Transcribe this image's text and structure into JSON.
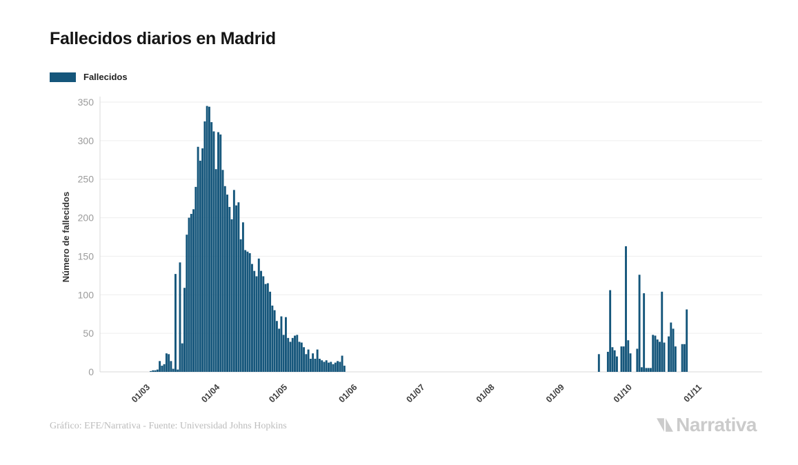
{
  "header": {
    "title": "Fallecidos diarios en Madrid"
  },
  "legend": {
    "label": "Fallecidos",
    "swatch_color": "#15567b"
  },
  "footer": {
    "credit": "Gráfico: EFE/Narrativa - Fuente: Universidad Johns Hopkins"
  },
  "branding": {
    "logo_text": "Narrativa",
    "logo_icon": "narrativa-n-icon",
    "logo_color": "#cbcbcb"
  },
  "chart_data": {
    "type": "bar",
    "title": "Fallecidos diarios en Madrid",
    "xlabel": "",
    "ylabel": "Número de fallecidos",
    "ylim": [
      0,
      350
    ],
    "y_ticks": [
      0,
      50,
      100,
      150,
      200,
      250,
      300,
      350
    ],
    "x_tick_labels": [
      "01/03",
      "01/04",
      "01/05",
      "01/06",
      "01/07",
      "01/08",
      "01/09",
      "01/10",
      "01/11"
    ],
    "x_tick_day_offsets": [
      0,
      31,
      61,
      92,
      122,
      153,
      184,
      214,
      245
    ],
    "grid": "horizontal",
    "legend_position": "top-left",
    "bar_color": "#15567b",
    "axis_color": "#d9d9d9",
    "grid_color": "#ededed",
    "y_tick_label_color": "#9b9b9b",
    "x_tick_label_color": "#3d3d3d",
    "series": [
      {
        "name": "Fallecidos",
        "start_date": "2020-03-01",
        "frequency": "daily",
        "values": [
          0,
          0,
          1,
          2,
          2,
          3,
          14,
          8,
          10,
          24,
          23,
          14,
          4,
          127,
          3,
          142,
          37,
          109,
          178,
          200,
          205,
          211,
          240,
          292,
          274,
          290,
          325,
          345,
          344,
          324,
          312,
          263,
          311,
          308,
          262,
          241,
          230,
          214,
          198,
          236,
          216,
          220,
          172,
          194,
          158,
          156,
          154,
          140,
          131,
          124,
          147,
          131,
          124,
          114,
          115,
          104,
          86,
          80,
          66,
          56,
          72,
          48,
          71,
          44,
          39,
          44,
          47,
          48,
          39,
          38,
          32,
          23,
          29,
          17,
          24,
          17,
          29,
          17,
          15,
          13,
          15,
          12,
          13,
          10,
          12,
          14,
          13,
          21,
          8,
          0,
          0,
          0,
          0,
          0,
          0,
          0,
          0,
          0,
          0,
          0,
          0,
          0,
          0,
          0,
          0,
          0,
          0,
          0,
          0,
          0,
          0,
          0,
          0,
          0,
          0,
          0,
          0,
          0,
          0,
          0,
          0,
          0,
          0,
          0,
          0,
          0,
          0,
          0,
          0,
          0,
          0,
          0,
          0,
          0,
          0,
          0,
          0,
          0,
          0,
          0,
          0,
          0,
          0,
          0,
          0,
          0,
          0,
          0,
          0,
          0,
          0,
          0,
          0,
          0,
          0,
          0,
          0,
          0,
          0,
          0,
          0,
          0,
          0,
          0,
          0,
          0,
          0,
          0,
          0,
          0,
          0,
          0,
          0,
          0,
          0,
          0,
          0,
          0,
          0,
          0,
          0,
          0,
          0,
          0,
          0,
          0,
          0,
          0,
          0,
          0,
          0,
          0,
          0,
          0,
          0,
          0,
          0,
          0,
          0,
          0,
          0,
          23,
          0,
          0,
          0,
          26,
          106,
          32,
          28,
          20,
          0,
          33,
          33,
          163,
          41,
          24,
          0,
          0,
          30,
          126,
          6,
          102,
          5,
          5,
          5,
          48,
          47,
          42,
          39,
          104,
          38,
          0,
          46,
          64,
          56,
          33,
          0,
          0,
          36,
          36,
          81,
          0,
          0,
          0,
          0
        ]
      }
    ]
  }
}
